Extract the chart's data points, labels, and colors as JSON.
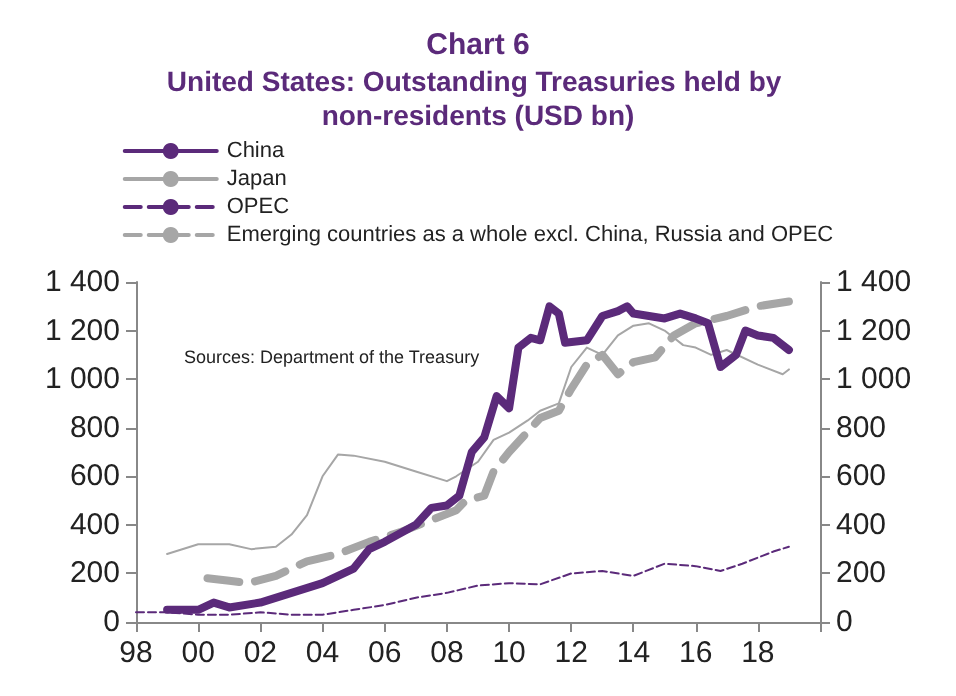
{
  "chart_data": {
    "type": "line",
    "title": "Chart 6",
    "subtitle": "United States: Outstanding Treasuries held by non-residents (USD bn)",
    "annotations": [
      "Sources: Department of the Treasury"
    ],
    "xlim": [
      1998,
      2020
    ],
    "xticks": [
      {
        "value": 1998,
        "label": "98"
      },
      {
        "value": 2000,
        "label": "00"
      },
      {
        "value": 2002,
        "label": "02"
      },
      {
        "value": 2004,
        "label": "04"
      },
      {
        "value": 2006,
        "label": "06"
      },
      {
        "value": 2008,
        "label": "08"
      },
      {
        "value": 2010,
        "label": "10"
      },
      {
        "value": 2012,
        "label": "12"
      },
      {
        "value": 2014,
        "label": "14"
      },
      {
        "value": 2016,
        "label": "16"
      },
      {
        "value": 2018,
        "label": "18"
      },
      {
        "value": 2020,
        "label": null
      }
    ],
    "ylim": [
      0,
      1400
    ],
    "yticks": [
      0,
      200,
      400,
      600,
      800,
      {
        "value": 1000,
        "label": "1 000"
      },
      {
        "value": 1200,
        "label": "1 200"
      },
      {
        "value": 1400,
        "label": "1 400"
      }
    ],
    "y2lim": [
      0,
      1400
    ],
    "y2ticks": [
      0,
      200,
      400,
      600,
      800,
      {
        "value": 1000,
        "label": "1 000"
      },
      {
        "value": 1200,
        "label": "1 200"
      },
      {
        "value": 1400,
        "label": "1 400"
      }
    ],
    "grid": false,
    "legend": "top",
    "marker": "none",
    "series": [
      {
        "name": "China",
        "color": "#5b2a7a",
        "line_style": "solid",
        "x": [
          1999,
          2000,
          2000.5,
          2001,
          2002,
          2003,
          2004,
          2005,
          2005.5,
          2006,
          2007,
          2007.5,
          2008,
          2008.4,
          2008.8,
          2009.2,
          2009.6,
          2010,
          2010.3,
          2010.7,
          2011,
          2011.3,
          2011.6,
          2011.8,
          2012.5,
          2013,
          2013.5,
          2013.8,
          2014,
          2015,
          2015.5,
          2016,
          2016.4,
          2016.8,
          2017.3,
          2017.6,
          2018,
          2018.5,
          2019
        ],
        "values": [
          50,
          50,
          80,
          60,
          80,
          120,
          160,
          220,
          300,
          330,
          400,
          470,
          480,
          520,
          700,
          760,
          930,
          880,
          1130,
          1170,
          1160,
          1300,
          1270,
          1150,
          1160,
          1260,
          1280,
          1300,
          1270,
          1250,
          1270,
          1250,
          1230,
          1050,
          1100,
          1200,
          1180,
          1170,
          1120
        ]
      },
      {
        "name": "Japan",
        "color": "#a6a6a6",
        "line_style": "solid",
        "x": [
          1999,
          2000,
          2001,
          2001.7,
          2002.5,
          2003,
          2003.5,
          2004,
          2004.5,
          2005,
          2006,
          2007,
          2008,
          2008.3,
          2009,
          2009.5,
          2010,
          2010.6,
          2011,
          2011.6,
          2012,
          2012.5,
          2013,
          2013.5,
          2014,
          2014.5,
          2015,
          2015.6,
          2016,
          2016.5,
          2017,
          2018,
          2018.8,
          2019
        ],
        "values": [
          280,
          320,
          320,
          300,
          310,
          360,
          440,
          600,
          690,
          685,
          660,
          620,
          580,
          600,
          660,
          750,
          780,
          830,
          870,
          900,
          1050,
          1130,
          1100,
          1180,
          1220,
          1230,
          1200,
          1140,
          1130,
          1100,
          1120,
          1060,
          1020,
          1040
        ]
      },
      {
        "name": "OPEC",
        "color": "#5b2a7a",
        "line_style": "dashed",
        "x": [
          1998,
          1999,
          2000,
          2001,
          2002,
          2003,
          2004,
          2005,
          2006,
          2007,
          2008,
          2009,
          2010,
          2011,
          2012,
          2013,
          2014,
          2015,
          2016,
          2016.8,
          2017.5,
          2018.5,
          2019
        ],
        "values": [
          40,
          40,
          30,
          30,
          40,
          30,
          30,
          50,
          70,
          100,
          120,
          150,
          160,
          155,
          200,
          210,
          190,
          240,
          230,
          210,
          240,
          290,
          310
        ]
      },
      {
        "name": "Emerging countries as a whole excl. China, Russia and OPEC",
        "color": "#a6a6a6",
        "line_style": "dashed",
        "x": [
          2000.3,
          2001,
          2001.6,
          2002.5,
          2003.5,
          2004.5,
          2005.5,
          2006.5,
          2007.5,
          2008.3,
          2008.6,
          2009.2,
          2009.5,
          2010,
          2011,
          2011.6,
          2012,
          2012.5,
          2013,
          2013.5,
          2014,
          2014.7,
          2015.3,
          2016,
          2017,
          2018,
          2019
        ],
        "values": [
          180,
          170,
          160,
          190,
          250,
          280,
          330,
          370,
          420,
          460,
          500,
          520,
          620,
          700,
          840,
          870,
          960,
          1060,
          1100,
          1020,
          1070,
          1090,
          1180,
          1230,
          1260,
          1300,
          1320
        ]
      }
    ]
  }
}
